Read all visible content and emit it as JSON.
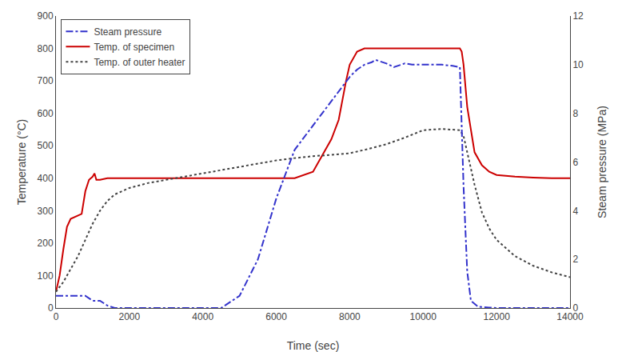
{
  "chart_data": {
    "type": "line",
    "xlabel": "Time (sec)",
    "ylabel": "Temperature (°C)",
    "y2label": "Steam pressure (MPa)",
    "xlim": [
      0,
      14000
    ],
    "ylim": [
      0,
      900
    ],
    "y2lim": [
      0,
      12
    ],
    "xticks": [
      0,
      2000,
      4000,
      6000,
      8000,
      10000,
      12000,
      14000
    ],
    "yticks": [
      0,
      100,
      200,
      300,
      400,
      500,
      600,
      700,
      800,
      900
    ],
    "y2ticks": [
      0,
      2,
      4,
      6,
      8,
      10,
      12
    ],
    "grid": false,
    "legend": "upper left",
    "series": [
      {
        "name": "Steam pressure",
        "color": "#3333cc",
        "line_style": "dashdot",
        "axis": "y2",
        "x": [
          0,
          200,
          400,
          600,
          800,
          1000,
          1200,
          1400,
          1600,
          1800,
          2000,
          2500,
          3000,
          3500,
          4000,
          4500,
          5000,
          5500,
          6000,
          6500,
          7000,
          7500,
          8000,
          8200,
          8400,
          8600,
          8700,
          8800,
          9000,
          9200,
          9500,
          9700,
          10000,
          10200,
          10500,
          10800,
          11000,
          11100,
          11200,
          11300,
          11500,
          11800,
          12000,
          12500,
          13000,
          13500,
          14000
        ],
        "values": [
          0.5,
          0.5,
          0.5,
          0.5,
          0.5,
          0.3,
          0.3,
          0.1,
          0.0,
          0.0,
          0.0,
          0.0,
          0.0,
          0.0,
          0.0,
          0.0,
          0.5,
          2.0,
          4.5,
          6.5,
          7.5,
          8.5,
          9.5,
          9.8,
          10.0,
          10.1,
          10.2,
          10.15,
          10.05,
          9.9,
          10.05,
          10.0,
          10.0,
          10.0,
          10.0,
          9.95,
          9.9,
          5.0,
          1.5,
          0.3,
          0.05,
          0.02,
          0.0,
          0.0,
          0.0,
          0.0,
          0.0
        ]
      },
      {
        "name": "Temp. of specimen",
        "color": "#cc0000",
        "line_style": "solid",
        "x": [
          0,
          100,
          200,
          300,
          400,
          500,
          600,
          700,
          800,
          900,
          1000,
          1050,
          1100,
          1200,
          1400,
          1600,
          1800,
          2000,
          2500,
          3000,
          3500,
          4000,
          4500,
          5000,
          5500,
          6000,
          6500,
          7000,
          7500,
          7700,
          7800,
          7900,
          8000,
          8200,
          8400,
          8600,
          8800,
          9000,
          9200,
          9500,
          9800,
          10000,
          10200,
          10500,
          10800,
          11000,
          11050,
          11100,
          11200,
          11400,
          11600,
          11800,
          12000,
          12500,
          13000,
          13500,
          14000
        ],
        "values": [
          50,
          100,
          180,
          250,
          275,
          280,
          285,
          290,
          360,
          395,
          405,
          415,
          395,
          395,
          400,
          400,
          400,
          400,
          400,
          400,
          400,
          400,
          400,
          400,
          400,
          400,
          400,
          420,
          520,
          580,
          640,
          700,
          750,
          790,
          800,
          800,
          800,
          800,
          800,
          800,
          800,
          800,
          800,
          800,
          800,
          800,
          790,
          750,
          620,
          480,
          440,
          420,
          410,
          405,
          402,
          400,
          400
        ]
      },
      {
        "name": "Temp. of outer heater",
        "color": "#444444",
        "line_style": "dotted",
        "x": [
          0,
          200,
          400,
          600,
          800,
          1000,
          1200,
          1400,
          1600,
          1800,
          2000,
          2500,
          3000,
          3500,
          4000,
          4500,
          5000,
          5500,
          6000,
          6500,
          7000,
          7500,
          8000,
          8500,
          9000,
          9500,
          10000,
          10500,
          11000,
          11100,
          11200,
          11400,
          11600,
          11800,
          12000,
          12500,
          13000,
          13500,
          14000
        ],
        "values": [
          50,
          80,
          120,
          160,
          210,
          260,
          300,
          330,
          350,
          360,
          370,
          385,
          395,
          405,
          415,
          425,
          435,
          445,
          455,
          462,
          468,
          472,
          477,
          490,
          505,
          525,
          548,
          552,
          548,
          530,
          480,
          380,
          295,
          245,
          210,
          160,
          130,
          110,
          95
        ]
      }
    ]
  }
}
